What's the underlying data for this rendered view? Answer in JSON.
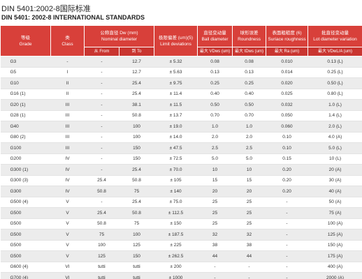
{
  "header": {
    "title": "DIN 5401:2002-8国际标准",
    "subtitle": "DIN 5401: 2002-8 INTERNATIONAL STANDARDS"
  },
  "table": {
    "columns": [
      {
        "zh": "等级",
        "en": "Grade"
      },
      {
        "zh": "类",
        "en": "Class"
      },
      {
        "zh": "公称直径 Dw (mm)",
        "en": "Nominal diameter"
      },
      {
        "zh": "极限偏差 (um)(5)",
        "en": "Limit deviations"
      },
      {
        "zh": "直径变动量",
        "en": "Ball diameter"
      },
      {
        "zh": "球形误差",
        "en": "Roundness"
      },
      {
        "zh": "表面粗糙度 (6)",
        "en": "Suriace roughness"
      },
      {
        "zh": "批直径变动量",
        "en": "Lot diameter variation"
      }
    ],
    "subheaders": [
      "从 From",
      "到 To",
      "最大 VDws (um)",
      "最大 tDws (um)",
      "最大 Ra (um)",
      "最大 VDwL/A (um)"
    ],
    "rows": [
      [
        "G3",
        "-",
        "-",
        "12.7",
        "± 5.32",
        "0.08",
        "0.08",
        "0.010",
        "0.13 (L)"
      ],
      [
        "G5",
        "I",
        "-",
        "12.7",
        "± 5.63",
        "0.13",
        "0.13",
        "0.014",
        "0.25 (L)"
      ],
      [
        "G10",
        "II",
        "-",
        "25.4",
        "± 9.75",
        "0.25",
        "0.25",
        "0.020",
        "0.50 (L)"
      ],
      [
        "G16 (1)",
        "II",
        "-",
        "25.4",
        "± 11.4",
        "0.40",
        "0.40",
        "0.025",
        "0.80 (L)"
      ],
      [
        "G20 (1)",
        "III",
        "-",
        "38.1",
        "± 11.5",
        "0.50",
        "0.50",
        "0.032",
        "1.0 (L)"
      ],
      [
        "G28 (1)",
        "III",
        "-",
        "50.8",
        "± 13.7",
        "0.70",
        "0.70",
        "0.050",
        "1.4 (L)"
      ],
      [
        "G40",
        "III",
        "-",
        "100",
        "± 19.0",
        "1.0",
        "1.0",
        "0.060",
        "2.0 (L)"
      ],
      [
        "G80 (2)",
        "III",
        "-",
        "100",
        "± 14.0",
        "2.0",
        "2.0",
        "0.10",
        "4.0 (A)"
      ],
      [
        "G100",
        "III",
        "-",
        "150",
        "± 47.5",
        "2.5",
        "2.5",
        "0.10",
        "5.0 (L)"
      ],
      [
        "G200",
        "IV",
        "-",
        "150",
        "± 72.5",
        "5.0",
        "5.0",
        "0.15",
        "10 (L)"
      ],
      [
        "G300 (1)",
        "IV",
        "-",
        "25.4",
        "± 70.0",
        "10",
        "10",
        "0.20",
        "20 (A)"
      ],
      [
        "G300 (3)",
        "IV",
        "25.4",
        "50.8",
        "± 105",
        "15",
        "15",
        "0.20",
        "30 (A)"
      ],
      [
        "G300",
        "IV",
        "50.8",
        "75",
        "± 140",
        "20",
        "20",
        "0.20",
        "40 (A)"
      ],
      [
        "G500 (4)",
        "V",
        "-",
        "25.4",
        "± 75.0",
        "25",
        "25",
        "-",
        "50 (A)"
      ],
      [
        "G500",
        "V",
        "25.4",
        "50.8",
        "± 112.5",
        "25",
        "25",
        "-",
        "75 (A)"
      ],
      [
        "G500",
        "V",
        "50.8",
        "75",
        "± 150",
        "25",
        "25",
        "-",
        "100 (A)"
      ],
      [
        "G500",
        "V",
        "75",
        "100",
        "± 187.5",
        "32",
        "32",
        "-",
        "125 (A)"
      ],
      [
        "G500",
        "V",
        "100",
        "125",
        "± 225",
        "38",
        "38",
        "-",
        "150 (A)"
      ],
      [
        "G500",
        "V",
        "125",
        "150",
        "± 262.5",
        "44",
        "44",
        "-",
        "175 (A)"
      ],
      [
        "G600 (4)",
        "VI",
        "tutti",
        "tutti",
        "± 200",
        "-",
        "-",
        "-",
        "400 (A)"
      ],
      [
        "G700 (4)",
        "VI",
        "tutti",
        "tutti",
        "± 1000",
        "-",
        "-",
        "-",
        "2000 (A)"
      ]
    ]
  }
}
